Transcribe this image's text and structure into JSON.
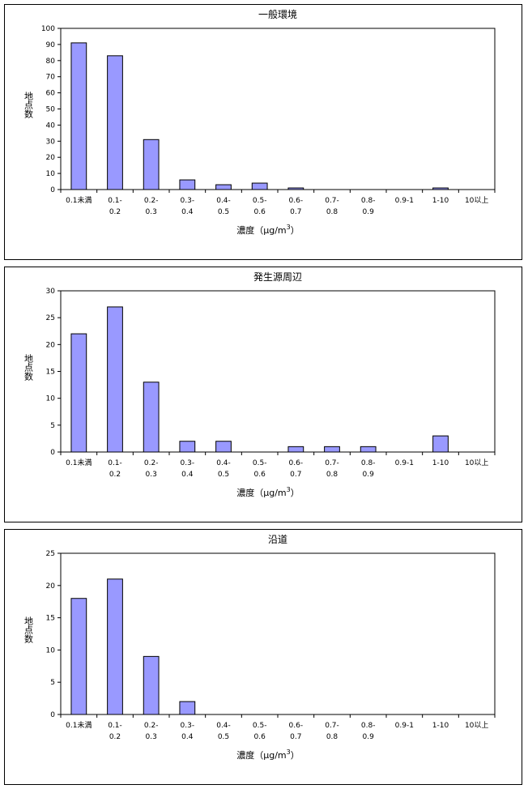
{
  "chart_data": [
    {
      "type": "bar",
      "title": "一般環境",
      "ylabel": "地点数",
      "xlabel": "濃度（μg/m",
      "xlabel_sup": "3",
      "xlabel_end": "）",
      "ylim": [
        0,
        100
      ],
      "yticks": [
        "0",
        "10",
        "20",
        "30",
        "40",
        "50",
        "60",
        "70",
        "80",
        "90",
        "100"
      ],
      "categories": [
        [
          "0.1未満"
        ],
        [
          "0.1-",
          "0.2"
        ],
        [
          "0.2-",
          "0.3"
        ],
        [
          "0.3-",
          "0.4"
        ],
        [
          "0.4-",
          "0.5"
        ],
        [
          "0.5-",
          "0.6"
        ],
        [
          "0.6-",
          "0.7"
        ],
        [
          "0.7-",
          "0.8"
        ],
        [
          "0.8-",
          "0.9"
        ],
        [
          "0.9-1"
        ],
        [
          "1-10"
        ],
        [
          "10以上"
        ]
      ],
      "values": [
        91,
        83,
        31,
        6,
        3,
        4,
        1,
        0,
        0,
        0,
        1,
        0
      ],
      "bar_color": "#9999ff",
      "grid": false
    },
    {
      "type": "bar",
      "title": "発生源周辺",
      "ylabel": "地点数",
      "xlabel": "濃度（μg/m",
      "xlabel_sup": "3",
      "xlabel_end": "）",
      "ylim": [
        0,
        30
      ],
      "yticks": [
        "0",
        "5",
        "10",
        "15",
        "20",
        "25",
        "30"
      ],
      "categories": [
        [
          "0.1未満"
        ],
        [
          "0.1-",
          "0.2"
        ],
        [
          "0.2-",
          "0.3"
        ],
        [
          "0.3-",
          "0.4"
        ],
        [
          "0.4-",
          "0.5"
        ],
        [
          "0.5-",
          "0.6"
        ],
        [
          "0.6-",
          "0.7"
        ],
        [
          "0.7-",
          "0.8"
        ],
        [
          "0.8-",
          "0.9"
        ],
        [
          "0.9-1"
        ],
        [
          "1-10"
        ],
        [
          "10以上"
        ]
      ],
      "values": [
        22,
        27,
        13,
        2,
        2,
        0,
        1,
        1,
        1,
        0,
        3,
        0
      ],
      "bar_color": "#9999ff",
      "grid": false
    },
    {
      "type": "bar",
      "title": "沿道",
      "ylabel": "地点数",
      "xlabel": "濃度（μg/m",
      "xlabel_sup": "3",
      "xlabel_end": "）",
      "ylim": [
        0,
        25
      ],
      "yticks": [
        "0",
        "5",
        "10",
        "15",
        "20",
        "25"
      ],
      "categories": [
        [
          "0.1未満"
        ],
        [
          "0.1-",
          "0.2"
        ],
        [
          "0.2-",
          "0.3"
        ],
        [
          "0.3-",
          "0.4"
        ],
        [
          "0.4-",
          "0.5"
        ],
        [
          "0.5-",
          "0.6"
        ],
        [
          "0.6-",
          "0.7"
        ],
        [
          "0.7-",
          "0.8"
        ],
        [
          "0.8-",
          "0.9"
        ],
        [
          "0.9-1"
        ],
        [
          "1-10"
        ],
        [
          "10以上"
        ]
      ],
      "values": [
        18,
        21,
        9,
        2,
        0,
        0,
        0,
        0,
        0,
        0,
        0,
        0
      ],
      "bar_color": "#9999ff",
      "grid": false
    }
  ]
}
